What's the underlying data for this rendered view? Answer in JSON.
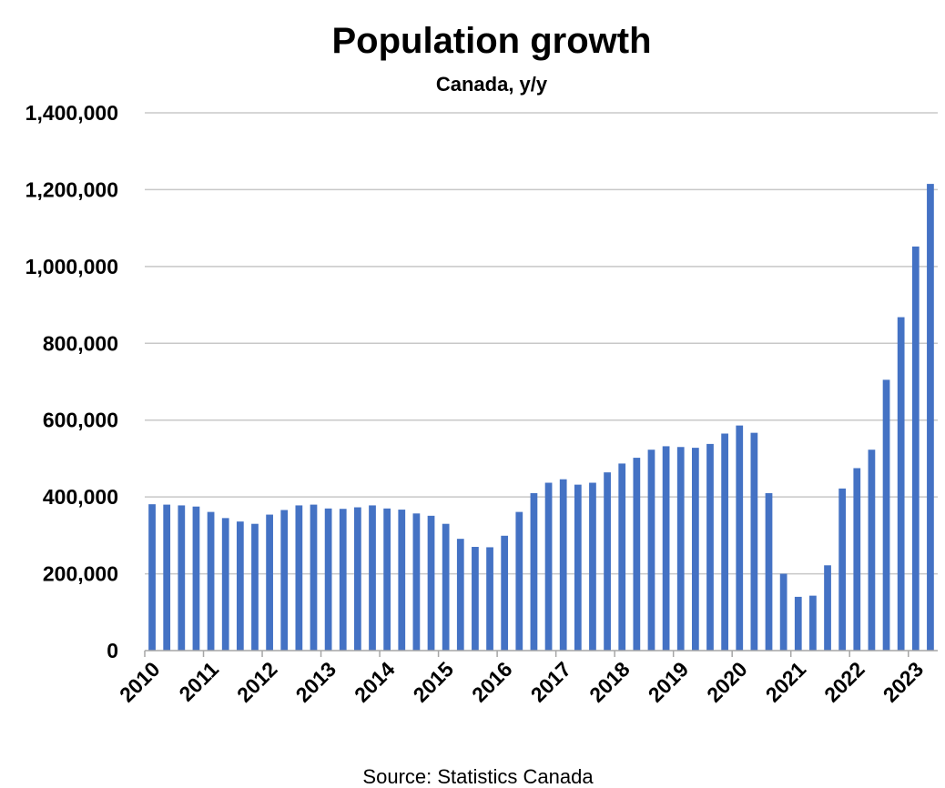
{
  "chart_data": {
    "type": "bar",
    "title": "Population growth",
    "subtitle": "Canada, y/y",
    "source": "Source: Statistics Canada",
    "xlabel": "",
    "ylabel": "",
    "ylim": [
      0,
      1400000
    ],
    "yticks": [
      0,
      200000,
      400000,
      600000,
      800000,
      1000000,
      1200000,
      1400000
    ],
    "ytick_labels": [
      "0",
      "200,000",
      "400,000",
      "600,000",
      "800,000",
      "1,000,000",
      "1,200,000",
      "1,400,000"
    ],
    "xtick_labels": [
      "2010",
      "2011",
      "2012",
      "2013",
      "2014",
      "2015",
      "2016",
      "2017",
      "2018",
      "2019",
      "2020",
      "2021",
      "2022",
      "2023"
    ],
    "grid": true,
    "legend": "none",
    "bar_color": "#4472C4",
    "values": [
      381000,
      380000,
      378000,
      375000,
      361000,
      345000,
      336000,
      330000,
      354000,
      366000,
      378000,
      380000,
      370000,
      369000,
      373000,
      378000,
      370000,
      367000,
      357000,
      351000,
      330000,
      291000,
      270000,
      269000,
      299000,
      361000,
      410000,
      437000,
      446000,
      432000,
      437000,
      464000,
      487000,
      502000,
      523000,
      532000,
      530000,
      528000,
      538000,
      565000,
      586000,
      567000,
      410000,
      200000,
      140000,
      143000,
      222000,
      422000,
      475000,
      523000,
      705000,
      868000,
      1052000,
      1215000
    ]
  }
}
